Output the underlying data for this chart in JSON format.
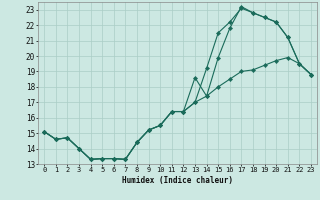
{
  "xlabel": "Humidex (Indice chaleur)",
  "bg_color": "#cce8e2",
  "line_color": "#1a6b5a",
  "grid_color": "#aacec6",
  "xlim": [
    -0.5,
    23.5
  ],
  "ylim": [
    13.0,
    23.5
  ],
  "xticks": [
    0,
    1,
    2,
    3,
    4,
    5,
    6,
    7,
    8,
    9,
    10,
    11,
    12,
    13,
    14,
    15,
    16,
    17,
    18,
    19,
    20,
    21,
    22,
    23
  ],
  "yticks": [
    13,
    14,
    15,
    16,
    17,
    18,
    19,
    20,
    21,
    22,
    23
  ],
  "line1_x": [
    0,
    1,
    2,
    3,
    4,
    5,
    6,
    7,
    8,
    9,
    10,
    11,
    12,
    13,
    14,
    15,
    16,
    17,
    18,
    19,
    20,
    21,
    22,
    23
  ],
  "line1_y": [
    15.1,
    14.6,
    14.7,
    14.0,
    13.3,
    13.35,
    13.35,
    13.3,
    14.4,
    15.2,
    15.5,
    16.4,
    16.4,
    18.6,
    17.4,
    19.9,
    21.8,
    23.2,
    22.8,
    22.5,
    22.2,
    21.2,
    19.5,
    18.8
  ],
  "line2_x": [
    0,
    1,
    2,
    3,
    4,
    5,
    6,
    7,
    8,
    9,
    10,
    11,
    12,
    13,
    14,
    15,
    16,
    17,
    18,
    19,
    20,
    21,
    22,
    23
  ],
  "line2_y": [
    15.1,
    14.6,
    14.7,
    14.0,
    13.3,
    13.35,
    13.35,
    13.3,
    14.4,
    15.2,
    15.5,
    16.4,
    16.4,
    17.0,
    19.2,
    21.5,
    22.2,
    23.1,
    22.8,
    22.5,
    22.2,
    21.2,
    19.5,
    18.8
  ],
  "line3_x": [
    0,
    1,
    2,
    3,
    4,
    5,
    6,
    7,
    8,
    9,
    10,
    11,
    12,
    13,
    14,
    15,
    16,
    17,
    18,
    19,
    20,
    21,
    22,
    23
  ],
  "line3_y": [
    15.1,
    14.6,
    14.7,
    14.0,
    13.3,
    13.35,
    13.35,
    13.3,
    14.4,
    15.2,
    15.5,
    16.4,
    16.4,
    17.0,
    17.4,
    18.0,
    18.5,
    19.0,
    19.1,
    19.4,
    19.7,
    19.9,
    19.5,
    18.8
  ]
}
